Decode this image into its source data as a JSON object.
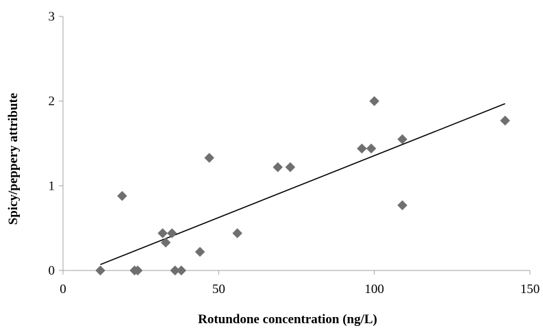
{
  "chart_data": {
    "type": "scatter",
    "title": "",
    "xlabel": "Rotundone concentration (ng/L)",
    "ylabel": "Spicy/peppery attribute",
    "xlim": [
      0,
      150
    ],
    "ylim": [
      0,
      3
    ],
    "x_ticks": [
      "0",
      "50",
      "100",
      "150"
    ],
    "y_ticks": [
      "0",
      "1",
      "2",
      "3"
    ],
    "grid": false,
    "legend": "none",
    "marker": "diamond",
    "marker_color": "#6f6f6f",
    "trendline_color": "#000000",
    "points": [
      {
        "x": 12,
        "y": 0.0
      },
      {
        "x": 19,
        "y": 0.88
      },
      {
        "x": 23,
        "y": 0.0
      },
      {
        "x": 24,
        "y": 0.0
      },
      {
        "x": 32,
        "y": 0.44
      },
      {
        "x": 33,
        "y": 0.33
      },
      {
        "x": 35,
        "y": 0.44
      },
      {
        "x": 36,
        "y": 0.0
      },
      {
        "x": 38,
        "y": 0.0
      },
      {
        "x": 44,
        "y": 0.22
      },
      {
        "x": 47,
        "y": 1.33
      },
      {
        "x": 56,
        "y": 0.44
      },
      {
        "x": 69,
        "y": 1.22
      },
      {
        "x": 73,
        "y": 1.22
      },
      {
        "x": 96,
        "y": 1.44
      },
      {
        "x": 99,
        "y": 1.44
      },
      {
        "x": 100,
        "y": 2.0
      },
      {
        "x": 109,
        "y": 1.55
      },
      {
        "x": 109,
        "y": 0.77
      },
      {
        "x": 142,
        "y": 1.77
      }
    ],
    "trendline": {
      "x1": 12,
      "y1": 0.07,
      "x2": 142,
      "y2": 1.97
    }
  }
}
